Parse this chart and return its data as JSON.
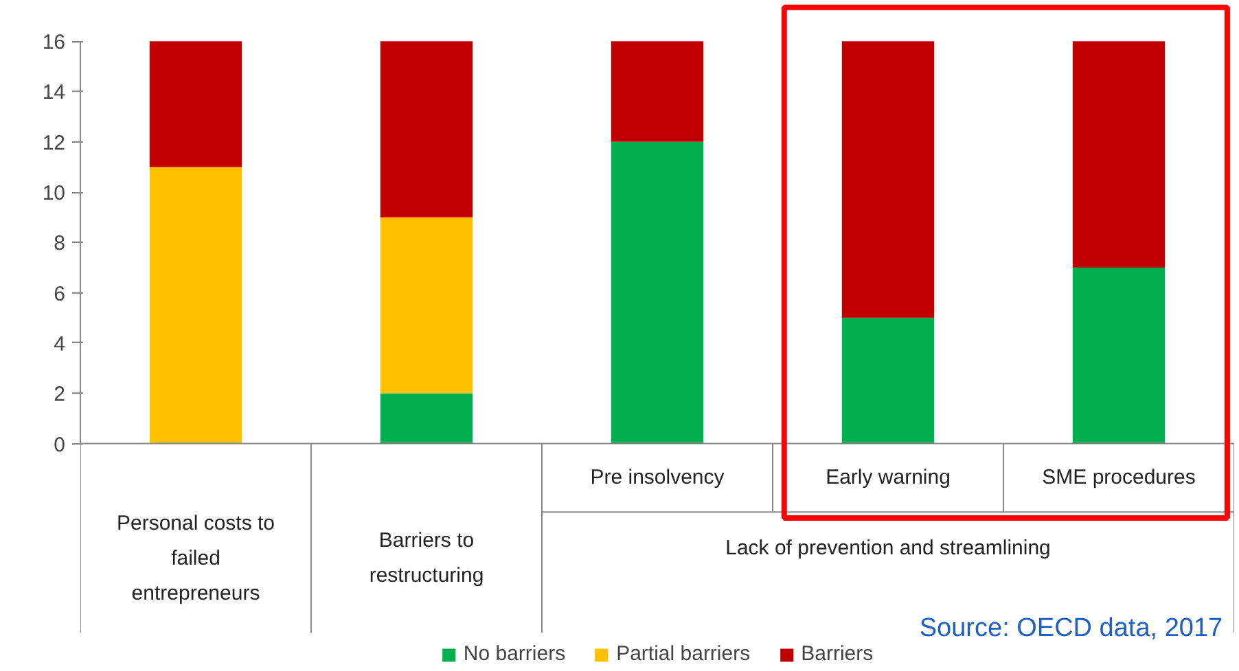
{
  "chart_data": {
    "type": "bar",
    "stacked": true,
    "categories": [
      "Personal costs to failed entrepreneurs",
      "Barriers to restructuring",
      "Pre insolvency",
      "Early warning",
      "SME procedures"
    ],
    "series": [
      {
        "name": "No barriers",
        "color": "#00b050",
        "values": [
          0,
          2,
          12,
          5,
          7
        ]
      },
      {
        "name": "Partial barriers",
        "color": "#ffc000",
        "values": [
          11,
          7,
          0,
          0,
          0
        ]
      },
      {
        "name": "Barriers",
        "color": "#c00000",
        "values": [
          5,
          7,
          4,
          11,
          9
        ]
      }
    ],
    "ylim": [
      0,
      16
    ],
    "yticks": [
      0,
      2,
      4,
      6,
      8,
      10,
      12,
      14,
      16
    ],
    "grid": false,
    "legend": "bottom",
    "annotations": [
      "Lack of prevention and streamlining",
      "Source: OECD data, 2017"
    ]
  }
}
